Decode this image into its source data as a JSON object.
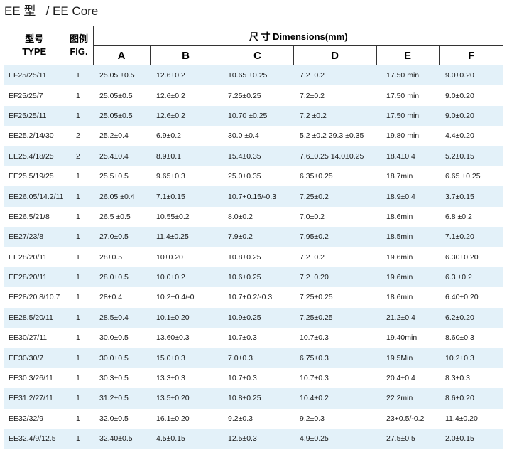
{
  "title": "EE 型   / EE Core",
  "header": {
    "type_cn": "型号",
    "type_en": "TYPE",
    "fig_cn": "图例",
    "fig_en": "FIG.",
    "dimensions": "尺 寸 Dimensions(mm)",
    "columns": [
      "A",
      "B",
      "C",
      "D",
      "E",
      "F"
    ]
  },
  "rows": [
    {
      "type": "EF25/25/11",
      "fig": "1",
      "A": "25.05  ±0.5",
      "B": "12.6±0.2",
      "C": "10.65 ±0.25",
      "D": "7.2±0.2",
      "E": "17.50 min",
      "F": "9.0±0.20"
    },
    {
      "type": "EF25/25/7",
      "fig": "1",
      "A": "25.05±0.5",
      "B": "12.6±0.2",
      "C": "7.25±0.25",
      "D": "7.2±0.2",
      "E": "17.50 min",
      "F": "9.0±0.20"
    },
    {
      "type": "EF25/25/11",
      "fig": "1",
      "A": "25.05±0.5",
      "B": "12.6±0.2",
      "C": "10.70 ±0.25",
      "D": "7.2 ±0.2",
      "E": "17.50 min",
      "F": "9.0±0.20"
    },
    {
      "type": "EE25.2/14/30",
      "fig": "2",
      "A": "25.2±0.4",
      "B": "6.9±0.2",
      "C": "30.0 ±0.4",
      "D": "5.2 ±0.2   29.3 ±0.35",
      "E": "19.80 min",
      "F": "4.4±0.20"
    },
    {
      "type": "EE25.4/18/25",
      "fig": "2",
      "A": "25.4±0.4",
      "B": "8.9±0.1",
      "C": "15.4±0.35",
      "D": "7.6±0.25  14.0±0.25",
      "E": "18.4±0.4",
      "F": "5.2±0.15"
    },
    {
      "type": "EE25.5/19/25",
      "fig": "1",
      "A": "25.5±0.5",
      "B": "9.65±0.3",
      "C": "25.0±0.35",
      "D": "6.35±0.25",
      "E": "18.7min",
      "F": "6.65 ±0.25"
    },
    {
      "type": "EE26.05/14.2/11",
      "fig": "1",
      "A": "26.05 ±0.4",
      "B": "7.1±0.15",
      "C": "10.7+0.15/-0.3",
      "D": "7.25±0.2",
      "E": "18.9±0.4",
      "F": "3.7±0.15"
    },
    {
      "type": "EE26.5/21/8",
      "fig": "1",
      "A": "26.5 ±0.5",
      "B": "10.55±0.2",
      "C": "8.0±0.2",
      "D": "7.0±0.2",
      "E": "18.6min",
      "F": "6.8 ±0.2"
    },
    {
      "type": "EE27/23/8",
      "fig": "1",
      "A": "27.0±0.5",
      "B": "11.4±0.25",
      "C": "7.9±0.2",
      "D": "7.95±0.2",
      "E": "18.5min",
      "F": "7.1±0.20"
    },
    {
      "type": "EE28/20/11",
      "fig": "1",
      "A": "28±0.5",
      "B": "10±0.20",
      "C": "10.8±0.25",
      "D": "7.2±0.2",
      "E": "19.6min",
      "F": "6.30±0.20"
    },
    {
      "type": "EE28/20/11",
      "fig": "1",
      "A": "28.0±0.5",
      "B": "10.0±0.2",
      "C": "10.6±0.25",
      "D": "7.2±0.20",
      "E": "19.6min",
      "F": "6.3 ±0.2"
    },
    {
      "type": "EE28/20.8/10.7",
      "fig": "1",
      "A": "28±0.4",
      "B": "10.2+0.4/-0",
      "C": "10.7+0.2/-0.3",
      "D": "7.25±0.25",
      "E": "18.6min",
      "F": "6.40±0.20"
    },
    {
      "type": "EE28.5/20/11",
      "fig": "1",
      "A": "28.5±0.4",
      "B": "10.1±0.20",
      "C": "10.9±0.25",
      "D": "7.25±0.25",
      "E": "21.2±0.4",
      "F": "6.2±0.20"
    },
    {
      "type": "EE30/27/11",
      "fig": "1",
      "A": "30.0±0.5",
      "B": "13.60±0.3",
      "C": "10.7±0.3",
      "D": "10.7±0.3",
      "E": "19.40min",
      "F": "8.60±0.3"
    },
    {
      "type": "EE30/30/7",
      "fig": "1",
      "A": "30.0±0.5",
      "B": "15.0±0.3",
      "C": "7.0±0.3",
      "D": "6.75±0.3",
      "E": "19.5Min",
      "F": "10.2±0.3"
    },
    {
      "type": "EE30.3/26/11",
      "fig": "1",
      "A": "30.3±0.5",
      "B": "13.3±0.3",
      "C": "10.7±0.3",
      "D": "10.7±0.3",
      "E": "20.4±0.4",
      "F": "8.3±0.3"
    },
    {
      "type": "EE31.2/27/11",
      "fig": "1",
      "A": "31.2±0.5",
      "B": "13.5±0.20",
      "C": "10.8±0.25",
      "D": "10.4±0.2",
      "E": "22.2min",
      "F": "8.6±0.20"
    },
    {
      "type": "EE32/32/9",
      "fig": "1",
      "A": "32.0±0.5",
      "B": "16.1±0.20",
      "C": "9.2±0.3",
      "D": "9.2±0.3",
      "E": "23+0.5/-0.2",
      "F": "11.4±0.20"
    },
    {
      "type": "EE32.4/9/12.5",
      "fig": "1",
      "A": "32.40±0.5",
      "B": "4.5±0.15",
      "C": "12.5±0.3",
      "D": "4.9±0.25",
      "E": "27.5±0.5",
      "F": "2.0±0.15"
    }
  ]
}
